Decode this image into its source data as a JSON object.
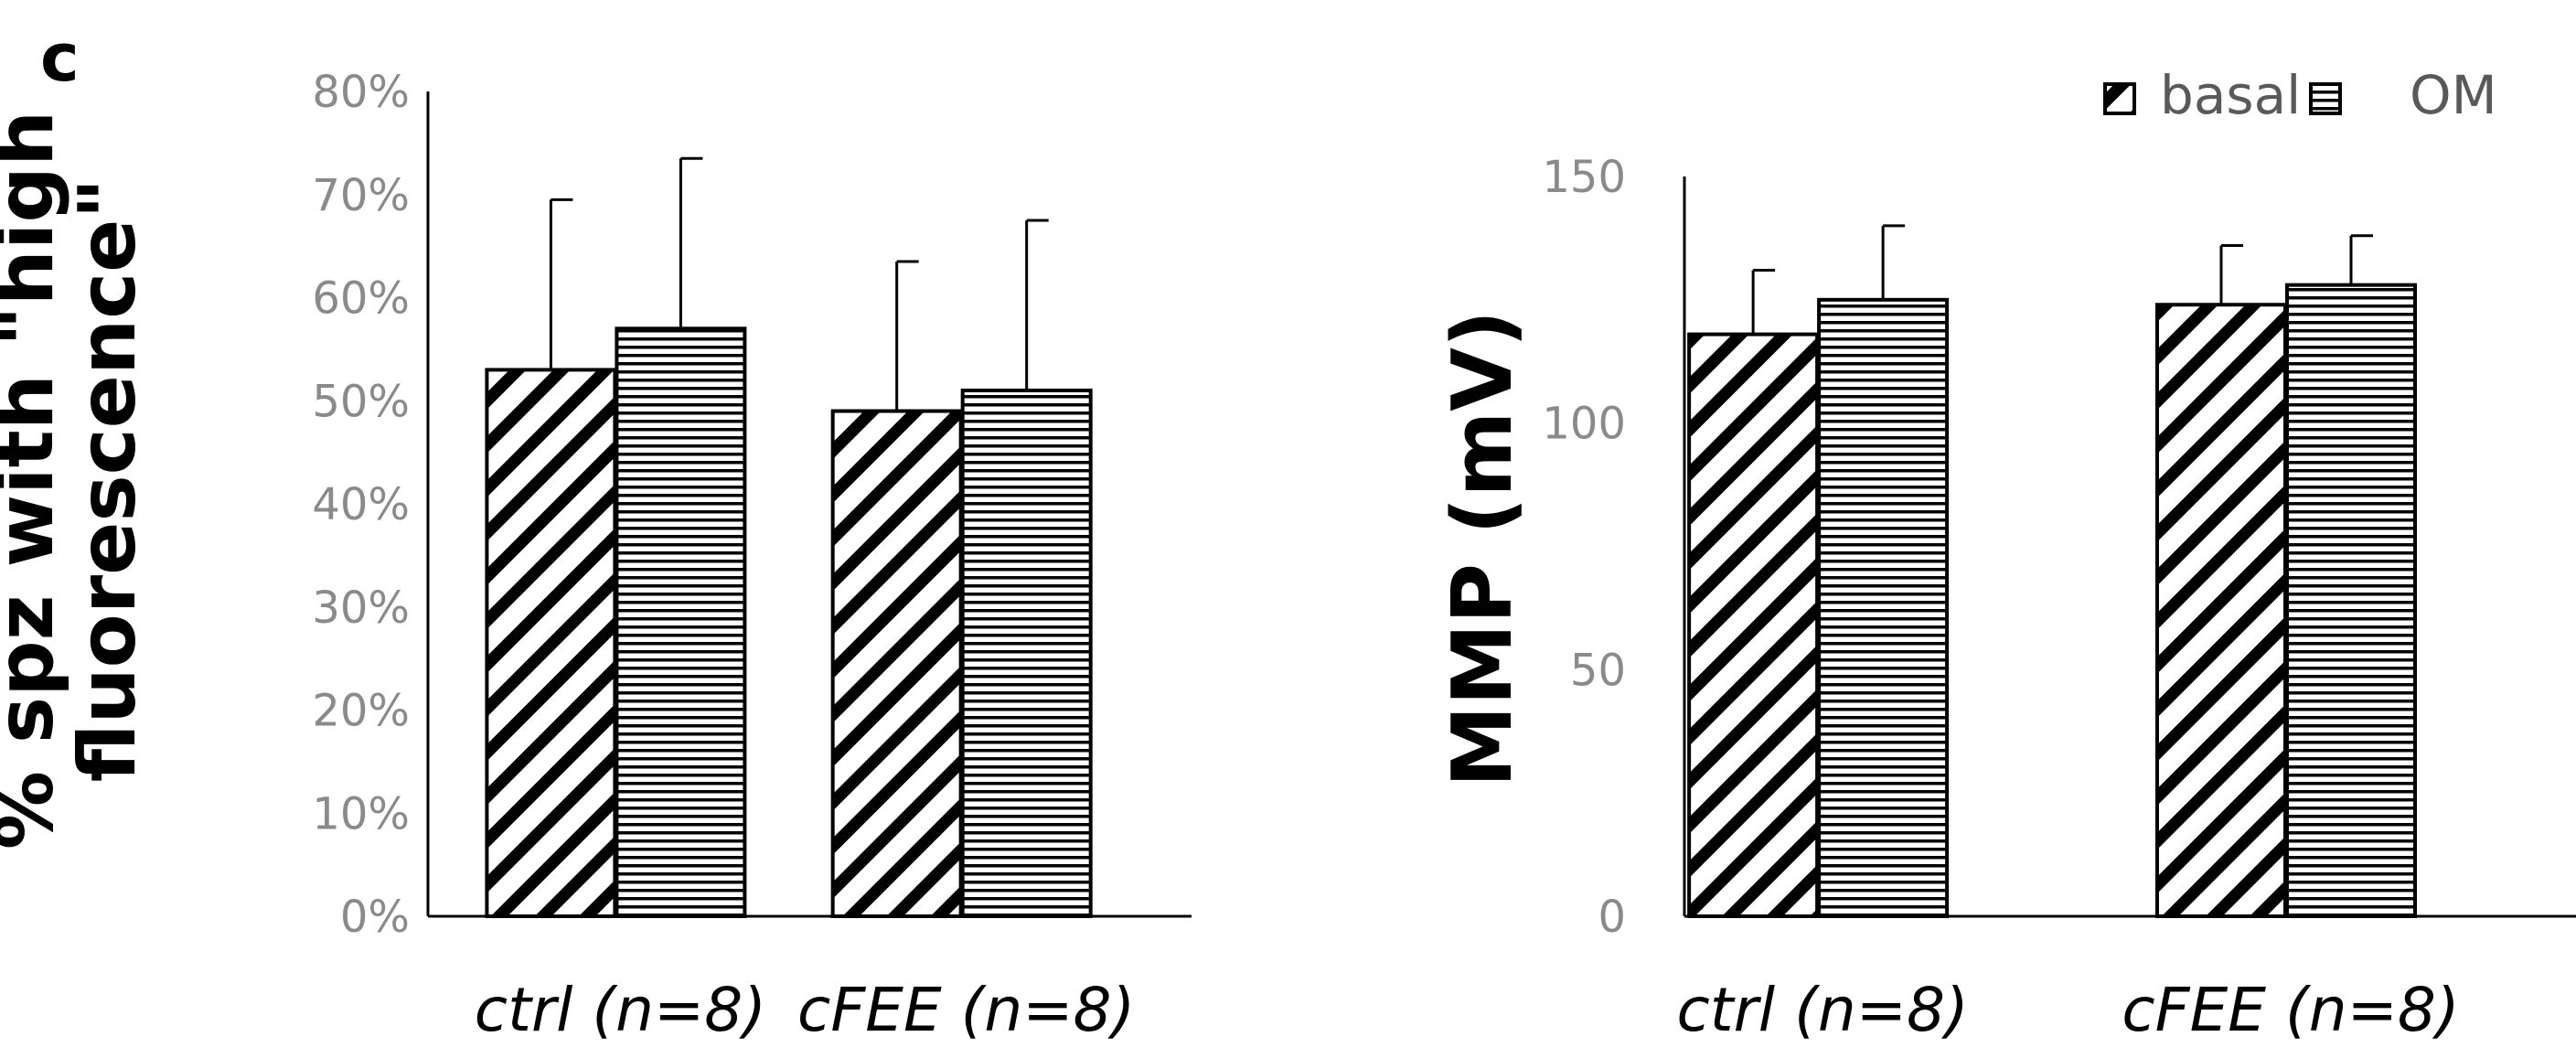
{
  "panel_label": "c",
  "legend": [
    {
      "label": "basal",
      "pattern": "diagonal-hatch"
    },
    {
      "label": "OM",
      "pattern": "horizontal-hatch"
    }
  ],
  "colors": {
    "bar_stroke": "#000000",
    "tick_text": "#8a8a8a",
    "axis": "#000000",
    "legend_text": "#595959"
  },
  "chart_data": [
    {
      "type": "bar",
      "ylabel_lines": [
        "% spz with \"high",
        "fluorescence\""
      ],
      "categories": [
        "ctrl (n=8)",
        "cFEE (n=8)"
      ],
      "ylim": [
        0,
        0.8
      ],
      "yticks": [
        0,
        0.1,
        0.2,
        0.3,
        0.4,
        0.5,
        0.6,
        0.7,
        0.8
      ],
      "ytick_labels": [
        "0%",
        "10%",
        "20%",
        "30%",
        "40%",
        "50%",
        "60%",
        "70%",
        "80%"
      ],
      "grid": false,
      "series": [
        {
          "name": "basal",
          "values": [
            0.53,
            0.49
          ],
          "errors": [
            0.165,
            0.145
          ]
        },
        {
          "name": "OM",
          "values": [
            0.57,
            0.51
          ],
          "errors": [
            0.165,
            0.165
          ]
        }
      ]
    },
    {
      "type": "bar",
      "ylabel_lines": [
        "MMP (mV)"
      ],
      "categories": [
        "ctrl (n=8)",
        "cFEE (n=8)"
      ],
      "ylim": [
        0,
        150
      ],
      "yticks": [
        0,
        50,
        100,
        150
      ],
      "ytick_labels": [
        "0",
        "50",
        "100",
        "150"
      ],
      "grid": false,
      "series": [
        {
          "name": "basal",
          "values": [
            118,
            124
          ],
          "errors": [
            13,
            12
          ]
        },
        {
          "name": "OM",
          "values": [
            125,
            128
          ],
          "errors": [
            15,
            10
          ]
        }
      ]
    }
  ]
}
